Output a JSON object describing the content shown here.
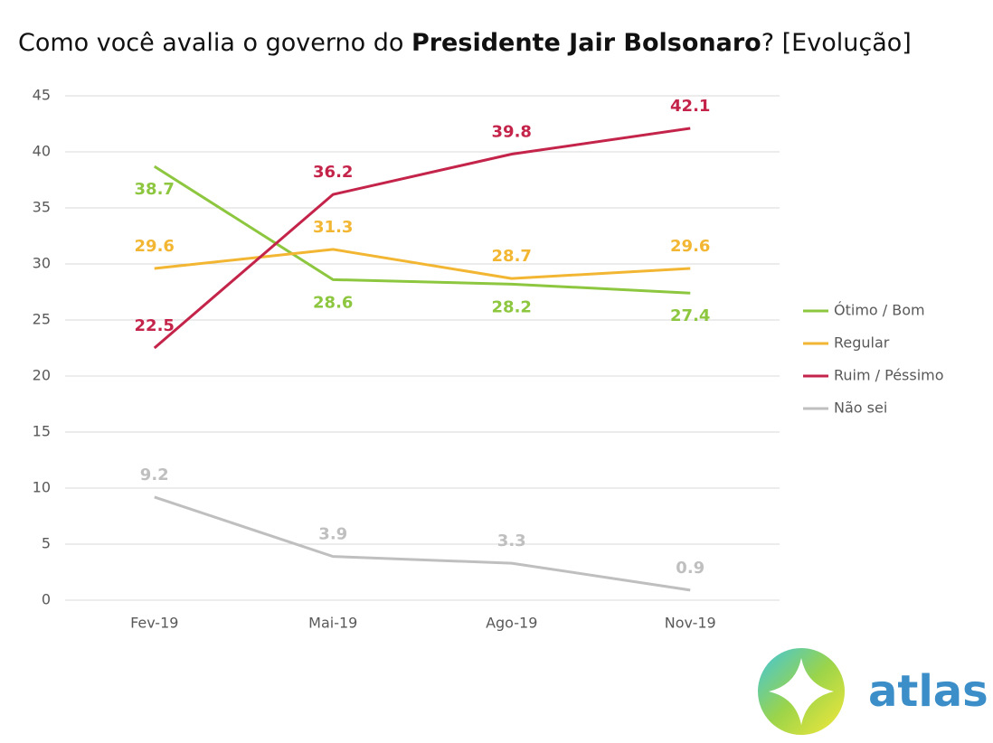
{
  "chart_data": {
    "type": "line",
    "title": [
      "Como você avalia o governo do ",
      "Presidente Jair Bolsonaro",
      "? [Evolução]"
    ],
    "categories": [
      "Fev-19",
      "Mai-19",
      "Ago-19",
      "Nov-19"
    ],
    "series": [
      {
        "name": "Ótimo / Bom",
        "color": "#8dc63f",
        "label_position": "below",
        "values": [
          38.7,
          28.6,
          28.2,
          27.4
        ]
      },
      {
        "name": "Regular",
        "color": "#f2b632",
        "label_position": "above",
        "values": [
          29.6,
          31.3,
          28.7,
          29.6
        ]
      },
      {
        "name": "Ruim / Péssimo",
        "color": "#c4244a",
        "label_position": "above",
        "values": [
          22.5,
          36.2,
          39.8,
          42.1
        ]
      },
      {
        "name": "Não sei",
        "color": "#bfbfbf",
        "label_position": "above",
        "values": [
          9.2,
          3.9,
          3.3,
          0.9
        ]
      }
    ],
    "ylim": [
      0,
      45
    ],
    "yticks": [
      0,
      5,
      10,
      15,
      20,
      25,
      30,
      35,
      40,
      45
    ],
    "grid": true,
    "legend": "right",
    "logo": "atlas"
  }
}
